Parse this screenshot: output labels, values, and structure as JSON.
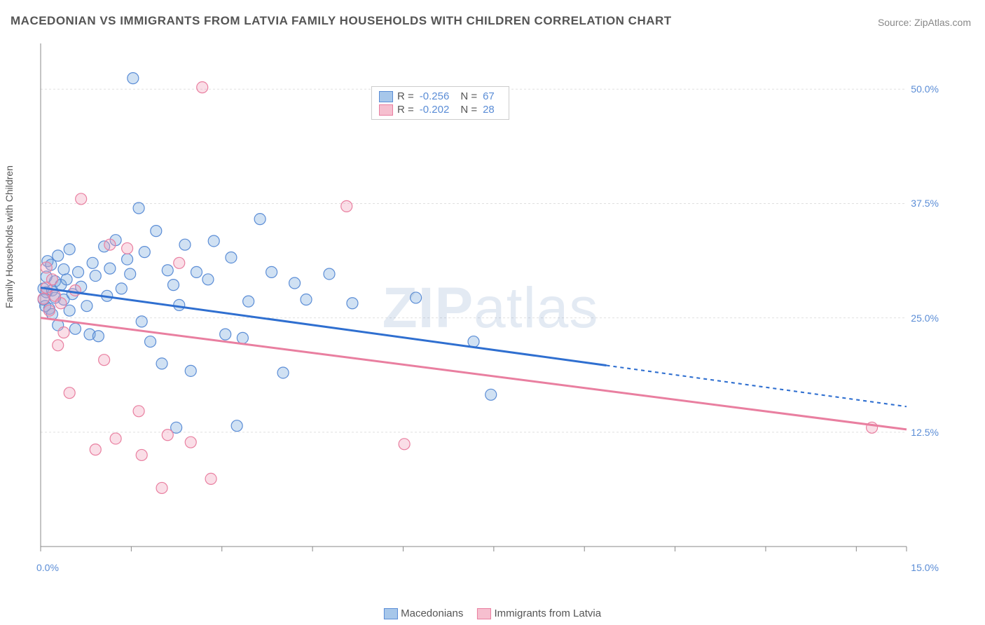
{
  "title": "MACEDONIAN VS IMMIGRANTS FROM LATVIA FAMILY HOUSEHOLDS WITH CHILDREN CORRELATION CHART",
  "source_prefix": "Source: ",
  "source": "ZipAtlas.com",
  "ylabel": "Family Households with Children",
  "watermark_a": "ZIP",
  "watermark_b": "atlas",
  "chart": {
    "type": "scatter",
    "background_color": "#ffffff",
    "grid_color": "#e0e0e0",
    "axis_color": "#888888",
    "tick_color": "#888888",
    "label_color": "#5b8dd6",
    "text_color": "#555555",
    "xlim": [
      0,
      15
    ],
    "ylim": [
      0,
      55
    ],
    "y_ticks": [
      12.5,
      25.0,
      37.5,
      50.0
    ],
    "y_tick_labels": [
      "12.5%",
      "25.0%",
      "37.5%",
      "50.0%"
    ],
    "x_tick_labels": {
      "left": "0.0%",
      "right": "15.0%"
    },
    "x_minor_ticks": [
      1.57,
      3.14,
      4.71,
      6.28,
      7.85,
      9.42,
      10.99,
      12.56,
      14.13
    ],
    "legend_top": {
      "r_label": "R =",
      "n_label": "N =",
      "rows": [
        {
          "fill": "#a7c7ea",
          "stroke": "#5b8dd6",
          "r": "-0.256",
          "n": "67"
        },
        {
          "fill": "#f6bfcf",
          "stroke": "#e97fa0",
          "r": "-0.202",
          "n": "28"
        }
      ]
    },
    "legend_bottom": [
      {
        "fill": "#a7c7ea",
        "stroke": "#5b8dd6",
        "label": "Macedonians"
      },
      {
        "fill": "#f6bfcf",
        "stroke": "#e97fa0",
        "label": "Immigrants from Latvia"
      }
    ],
    "series": [
      {
        "name": "macedonians",
        "fill": "rgba(120,170,220,0.35)",
        "stroke": "#5b8dd6",
        "marker_r": 8,
        "points": [
          [
            0.05,
            27.0
          ],
          [
            0.05,
            28.2
          ],
          [
            0.08,
            26.3
          ],
          [
            0.1,
            29.5
          ],
          [
            0.1,
            27.8
          ],
          [
            0.12,
            31.2
          ],
          [
            0.15,
            26.0
          ],
          [
            0.18,
            30.8
          ],
          [
            0.2,
            28.0
          ],
          [
            0.2,
            25.4
          ],
          [
            0.25,
            29.0
          ],
          [
            0.25,
            27.2
          ],
          [
            0.3,
            31.8
          ],
          [
            0.3,
            24.2
          ],
          [
            0.35,
            28.6
          ],
          [
            0.4,
            27.0
          ],
          [
            0.4,
            30.3
          ],
          [
            0.45,
            29.2
          ],
          [
            0.5,
            25.8
          ],
          [
            0.5,
            32.5
          ],
          [
            0.55,
            27.6
          ],
          [
            0.6,
            23.8
          ],
          [
            0.65,
            30.0
          ],
          [
            0.7,
            28.4
          ],
          [
            0.8,
            26.3
          ],
          [
            0.85,
            23.2
          ],
          [
            0.9,
            31.0
          ],
          [
            0.95,
            29.6
          ],
          [
            1.0,
            23.0
          ],
          [
            1.1,
            32.8
          ],
          [
            1.15,
            27.4
          ],
          [
            1.2,
            30.4
          ],
          [
            1.3,
            33.5
          ],
          [
            1.4,
            28.2
          ],
          [
            1.5,
            31.4
          ],
          [
            1.55,
            29.8
          ],
          [
            1.6,
            51.2
          ],
          [
            1.7,
            37.0
          ],
          [
            1.75,
            24.6
          ],
          [
            1.8,
            32.2
          ],
          [
            1.9,
            22.4
          ],
          [
            2.0,
            34.5
          ],
          [
            2.1,
            20.0
          ],
          [
            2.2,
            30.2
          ],
          [
            2.3,
            28.6
          ],
          [
            2.35,
            13.0
          ],
          [
            2.4,
            26.4
          ],
          [
            2.5,
            33.0
          ],
          [
            2.6,
            19.2
          ],
          [
            2.7,
            30.0
          ],
          [
            2.9,
            29.2
          ],
          [
            3.0,
            33.4
          ],
          [
            3.2,
            23.2
          ],
          [
            3.3,
            31.6
          ],
          [
            3.4,
            13.2
          ],
          [
            3.5,
            22.8
          ],
          [
            3.6,
            26.8
          ],
          [
            3.8,
            35.8
          ],
          [
            4.0,
            30.0
          ],
          [
            4.2,
            19.0
          ],
          [
            4.4,
            28.8
          ],
          [
            4.6,
            27.0
          ],
          [
            5.0,
            29.8
          ],
          [
            5.4,
            26.6
          ],
          [
            6.5,
            27.2
          ],
          [
            7.5,
            22.4
          ],
          [
            7.8,
            16.6
          ]
        ],
        "trend": {
          "x1": 0.0,
          "y1": 28.3,
          "x2": 9.8,
          "y2": 19.8,
          "ext_x2": 15.0,
          "ext_y2": 15.3,
          "color": "#2f6fd0",
          "width": 3
        }
      },
      {
        "name": "latvia",
        "fill": "rgba(240,160,185,0.35)",
        "stroke": "#e97fa0",
        "marker_r": 8,
        "points": [
          [
            0.05,
            27.1
          ],
          [
            0.1,
            28.3
          ],
          [
            0.1,
            30.5
          ],
          [
            0.15,
            25.8
          ],
          [
            0.2,
            29.2
          ],
          [
            0.25,
            27.4
          ],
          [
            0.3,
            22.0
          ],
          [
            0.35,
            26.6
          ],
          [
            0.4,
            23.4
          ],
          [
            0.5,
            16.8
          ],
          [
            0.6,
            28.0
          ],
          [
            0.7,
            38.0
          ],
          [
            0.95,
            10.6
          ],
          [
            1.1,
            20.4
          ],
          [
            1.2,
            33.0
          ],
          [
            1.3,
            11.8
          ],
          [
            1.5,
            32.6
          ],
          [
            1.7,
            14.8
          ],
          [
            1.75,
            10.0
          ],
          [
            2.1,
            6.4
          ],
          [
            2.2,
            12.2
          ],
          [
            2.4,
            31.0
          ],
          [
            2.6,
            11.4
          ],
          [
            2.8,
            50.2
          ],
          [
            2.95,
            7.4
          ],
          [
            5.3,
            37.2
          ],
          [
            6.3,
            11.2
          ],
          [
            14.4,
            13.0
          ]
        ],
        "trend": {
          "x1": 0.0,
          "y1": 25.0,
          "x2": 15.0,
          "y2": 12.8,
          "color": "#e97fa0",
          "width": 3
        }
      }
    ]
  }
}
